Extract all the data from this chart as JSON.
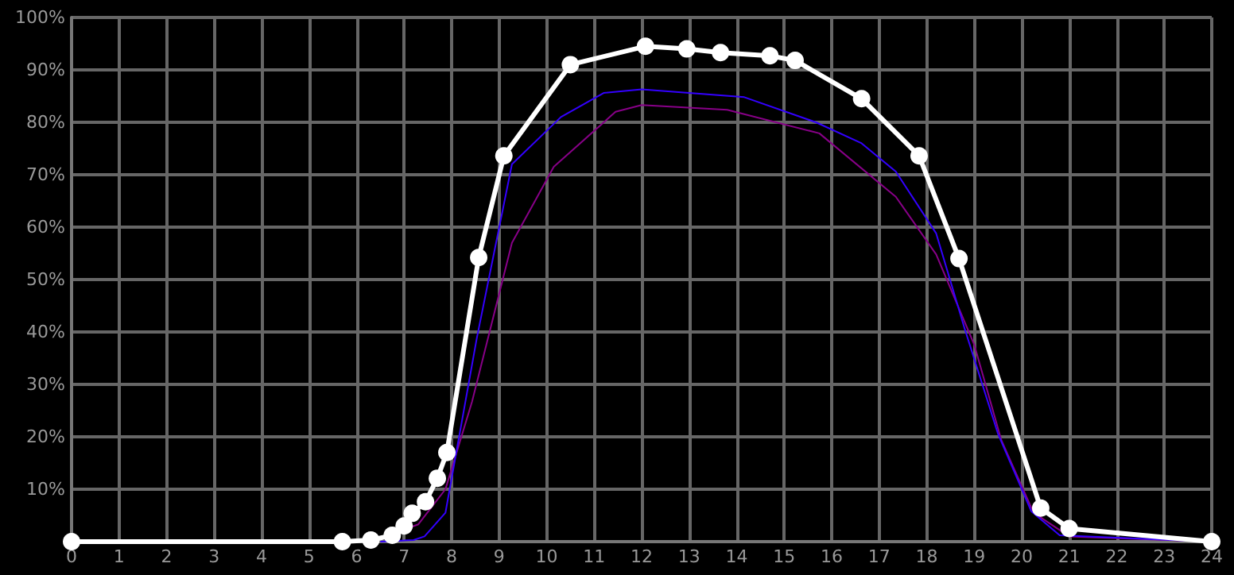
{
  "chart_data": {
    "type": "line",
    "xlim": [
      0,
      24
    ],
    "xticks": [
      0,
      1,
      2,
      3,
      4,
      5,
      6,
      7,
      8,
      9,
      10,
      11,
      12,
      13,
      14,
      15,
      16,
      17,
      18,
      19,
      20,
      21,
      22,
      23,
      24
    ],
    "ylim": [
      0,
      100
    ],
    "yticks": [
      {
        "value": 0,
        "label": null
      },
      {
        "value": 10,
        "label": "10%"
      },
      {
        "value": 20,
        "label": "20%"
      },
      {
        "value": 30,
        "label": "30%"
      },
      {
        "value": 40,
        "label": "40%"
      },
      {
        "value": 50,
        "label": "50%"
      },
      {
        "value": 60,
        "label": "60%"
      },
      {
        "value": 70,
        "label": "70%"
      },
      {
        "value": 80,
        "label": "80%"
      },
      {
        "value": 90,
        "label": "90%"
      },
      {
        "value": 100,
        "label": "100%"
      }
    ],
    "grid": true,
    "series": [
      {
        "color": "#880088",
        "marker": "none",
        "x": [
          6.3,
          7.3,
          7.87,
          8.43,
          9.27,
          10.15,
          11.45,
          12.0,
          13.8,
          15.74,
          17.35,
          18.2,
          19.0,
          19.57,
          20.25,
          21.0,
          24
        ],
        "values": [
          0,
          3.3,
          10,
          26.7,
          57,
          71.5,
          82,
          83.3,
          82.4,
          77.9,
          65.8,
          54.8,
          37.6,
          19.4,
          5.5,
          1,
          0
        ]
      },
      {
        "color": "#3300ff",
        "marker": "none",
        "x": [
          6.5,
          7.2,
          7.43,
          7.87,
          8.53,
          9.27,
          10.3,
          11.2,
          12.0,
          14.16,
          15.67,
          16.63,
          17.35,
          18.2,
          18.8,
          19.5,
          20.2,
          20.8,
          24
        ],
        "values": [
          0,
          0.3,
          1,
          5.5,
          38.8,
          72,
          81,
          85.6,
          86.3,
          84.8,
          80,
          76,
          70.6,
          58.8,
          40.6,
          20.6,
          5.8,
          1.2,
          0
        ]
      },
      {
        "color": "#ffffff",
        "marker": "circle",
        "x": [
          0,
          5.7,
          6.3,
          6.75,
          7.0,
          7.17,
          7.45,
          7.7,
          7.9,
          8.57,
          9.1,
          10.5,
          12.08,
          12.95,
          13.66,
          14.7,
          15.23,
          16.63,
          17.84,
          18.68,
          20.4,
          21.0,
          24
        ],
        "values": [
          0,
          0,
          0.3,
          1.2,
          3.0,
          5.4,
          7.6,
          12.1,
          17,
          54.2,
          73.6,
          91,
          94.5,
          94.0,
          93.3,
          92.7,
          91.8,
          84.5,
          73.6,
          54,
          6.4,
          2.5,
          0
        ]
      }
    ]
  }
}
